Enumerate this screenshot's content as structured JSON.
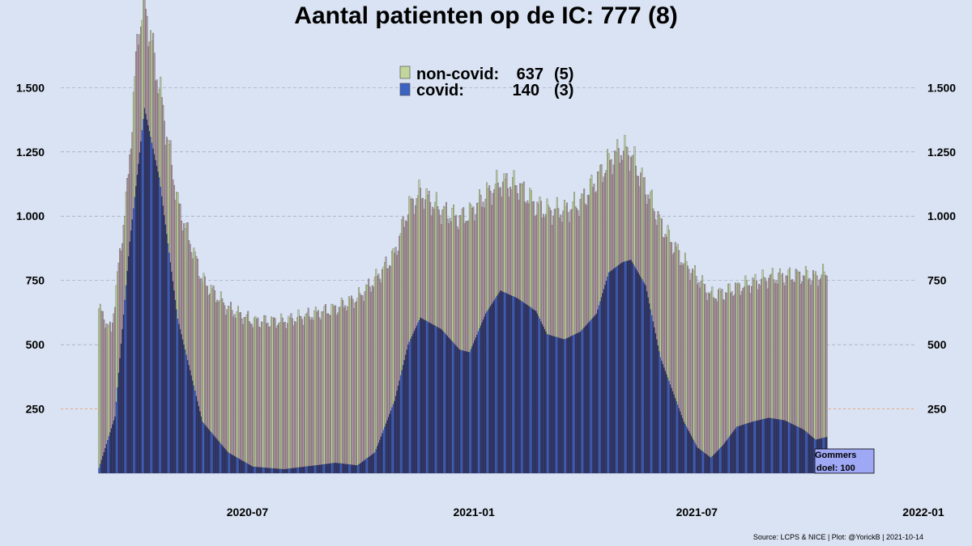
{
  "chart_data": {
    "type": "bar",
    "title": "Aantal patienten op de IC: 777  (8)",
    "y_ticks": [
      250,
      500,
      750,
      1000,
      1250,
      1500
    ],
    "y_tick_labels": [
      "250",
      "500",
      "750",
      "1.000",
      "1.250",
      "1.500"
    ],
    "ylim": [
      0,
      1800
    ],
    "x_ticks": [
      "2020-07-01",
      "2021-01-01",
      "2021-07-01",
      "2022-01-01"
    ],
    "x_tick_labels": [
      "2020-07",
      "2021-01",
      "2021-07",
      "2022-01"
    ],
    "xlim": [
      "2020-03-01",
      "2022-01-01"
    ],
    "reference_line": {
      "value": 250
    },
    "legend": {
      "placement": "top-center",
      "rows": [
        {
          "label": "non-covid:",
          "value": "637",
          "delta": "(5)",
          "color": "#c2d69b"
        },
        {
          "label": "covid:",
          "value": "140",
          "delta": "(3)",
          "color": "#3c62c2"
        }
      ]
    },
    "note_box": {
      "lines": [
        "Gommers",
        "doel: 100"
      ],
      "color": "#9fa8f5"
    },
    "series": [
      {
        "name": "covid",
        "color": "#3c62c2"
      },
      {
        "name": "non-covid",
        "color": "#c2d69b"
      }
    ],
    "covid_keyframes": [
      [
        "2020-03-02",
        20
      ],
      [
        "2020-03-15",
        220
      ],
      [
        "2020-03-27",
        900
      ],
      [
        "2020-04-08",
        1420
      ],
      [
        "2020-04-20",
        1150
      ],
      [
        "2020-05-05",
        600
      ],
      [
        "2020-05-25",
        200
      ],
      [
        "2020-06-15",
        80
      ],
      [
        "2020-07-05",
        25
      ],
      [
        "2020-07-30",
        15
      ],
      [
        "2020-08-25",
        30
      ],
      [
        "2020-09-10",
        40
      ],
      [
        "2020-09-28",
        30
      ],
      [
        "2020-10-12",
        80
      ],
      [
        "2020-10-28",
        280
      ],
      [
        "2020-11-08",
        500
      ],
      [
        "2020-11-18",
        605
      ],
      [
        "2020-12-05",
        560
      ],
      [
        "2020-12-20",
        480
      ],
      [
        "2020-12-28",
        470
      ],
      [
        "2021-01-10",
        620
      ],
      [
        "2021-01-22",
        710
      ],
      [
        "2021-02-05",
        680
      ],
      [
        "2021-02-20",
        630
      ],
      [
        "2021-03-01",
        540
      ],
      [
        "2021-03-15",
        520
      ],
      [
        "2021-03-28",
        550
      ],
      [
        "2021-04-10",
        620
      ],
      [
        "2021-04-20",
        780
      ],
      [
        "2021-05-01",
        820
      ],
      [
        "2021-05-08",
        830
      ],
      [
        "2021-05-20",
        730
      ],
      [
        "2021-06-01",
        450
      ],
      [
        "2021-06-20",
        200
      ],
      [
        "2021-07-01",
        100
      ],
      [
        "2021-07-12",
        60
      ],
      [
        "2021-07-22",
        110
      ],
      [
        "2021-08-02",
        180
      ],
      [
        "2021-08-15",
        200
      ],
      [
        "2021-08-28",
        215
      ],
      [
        "2021-09-10",
        205
      ],
      [
        "2021-09-25",
        170
      ],
      [
        "2021-10-05",
        130
      ],
      [
        "2021-10-14",
        140
      ]
    ],
    "total_keyframes": [
      [
        "2020-03-02",
        640
      ],
      [
        "2020-03-12",
        550
      ],
      [
        "2020-03-25",
        1100
      ],
      [
        "2020-04-03",
        1730
      ],
      [
        "2020-04-08",
        1830
      ],
      [
        "2020-04-20",
        1500
      ],
      [
        "2020-05-05",
        1050
      ],
      [
        "2020-05-25",
        750
      ],
      [
        "2020-06-15",
        640
      ],
      [
        "2020-07-05",
        590
      ],
      [
        "2020-07-30",
        590
      ],
      [
        "2020-08-25",
        620
      ],
      [
        "2020-09-10",
        640
      ],
      [
        "2020-09-28",
        680
      ],
      [
        "2020-10-12",
        750
      ],
      [
        "2020-10-28",
        850
      ],
      [
        "2020-11-08",
        1030
      ],
      [
        "2020-11-18",
        1090
      ],
      [
        "2020-12-05",
        1020
      ],
      [
        "2020-12-20",
        990
      ],
      [
        "2020-12-28",
        1010
      ],
      [
        "2021-01-10",
        1080
      ],
      [
        "2021-01-22",
        1130
      ],
      [
        "2021-02-05",
        1120
      ],
      [
        "2021-02-20",
        1040
      ],
      [
        "2021-03-01",
        1020
      ],
      [
        "2021-03-15",
        1020
      ],
      [
        "2021-03-28",
        1050
      ],
      [
        "2021-04-10",
        1140
      ],
      [
        "2021-04-20",
        1210
      ],
      [
        "2021-05-01",
        1260
      ],
      [
        "2021-05-08",
        1240
      ],
      [
        "2021-05-20",
        1110
      ],
      [
        "2021-06-01",
        970
      ],
      [
        "2021-06-20",
        820
      ],
      [
        "2021-07-01",
        760
      ],
      [
        "2021-07-12",
        690
      ],
      [
        "2021-07-22",
        700
      ],
      [
        "2021-08-02",
        720
      ],
      [
        "2021-08-15",
        740
      ],
      [
        "2021-08-28",
        760
      ],
      [
        "2021-09-10",
        765
      ],
      [
        "2021-09-25",
        770
      ],
      [
        "2021-10-05",
        760
      ],
      [
        "2021-10-14",
        777
      ]
    ],
    "source": "Source: LCPS & NICE | Plot: @YorickB |  2021-10-14"
  }
}
